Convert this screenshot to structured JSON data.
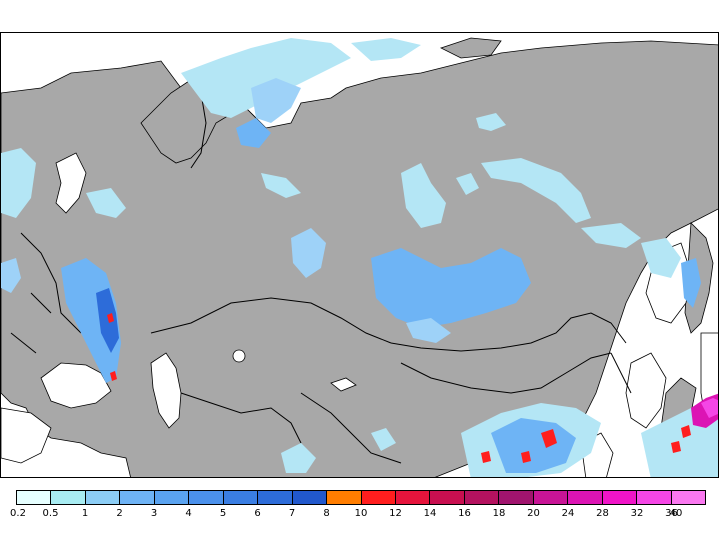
{
  "map": {
    "land_color": "#a8a8a8",
    "water_color": "#ffffff",
    "border_color": "#000000"
  },
  "legend": {
    "colors": [
      "#e6ffff",
      "#a8ecf2",
      "#8ccdf5",
      "#6eb3f5",
      "#5aa3f0",
      "#4b91ec",
      "#3a7ee3",
      "#2d6cd9",
      "#2158cc",
      "#ff7d00",
      "#ff1e1e",
      "#e6143c",
      "#c80f50",
      "#b4125f",
      "#a0146e",
      "#c81496",
      "#dc14b4",
      "#f014c8",
      "#f546e6",
      "#fa78f0"
    ],
    "labels": [
      "0.2",
      "0.5",
      "1",
      "2",
      "3",
      "4",
      "5",
      "6",
      "7",
      "8",
      "10",
      "12",
      "14",
      "16",
      "18",
      "20",
      "24",
      "28",
      "32",
      "36",
      "40"
    ]
  },
  "precip_colors": {
    "light": "#b4e6f5",
    "pale": "#9ed2f8",
    "medium": "#6eb4f5",
    "strong": "#4a91ec",
    "heavy": "#2d6cd9",
    "red": "#ff1e1e",
    "magenta": "#dc14b4",
    "pink": "#f546e6"
  }
}
